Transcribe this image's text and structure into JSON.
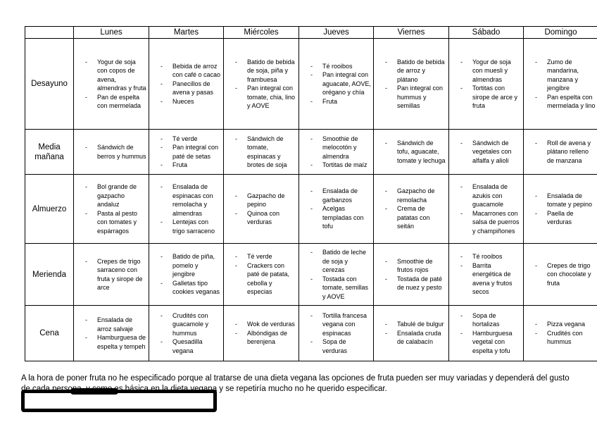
{
  "bullet": "-",
  "table": {
    "header": [
      "",
      "Lunes",
      "Martes",
      "Miércoles",
      "Jueves",
      "Viernes",
      "Sábado",
      "Domingo"
    ],
    "rows": [
      {
        "label": "Desayuno",
        "cells": [
          [
            "Yogur de soja con copos de avena, almendras y fruta",
            "Pan de espelta con mermelada"
          ],
          [
            "Bebida de arroz con café o cacao",
            "Panecillos de avena y pasas",
            "Nueces"
          ],
          [
            "Batido de bebida de soja, piña y frambuesa",
            "Pan integral con tomate, chia, lino y AOVE"
          ],
          [
            "Té rooibos",
            "Pan integral con aguacate, AOVE, orégano y chía",
            "Fruta"
          ],
          [
            "Batido de bebida de arroz y plátano",
            "Pan integral con hummus y semillas"
          ],
          [
            "Yogur de soja con muesli y almendras",
            "Tortitas con sirope de arce y fruta"
          ],
          [
            "Zumo de mandarina, manzana y jengibre",
            "Pan espelta con mermelada y lino"
          ]
        ]
      },
      {
        "label": "Media mañana",
        "cells": [
          [
            "Sándwich de berros y hummus"
          ],
          [
            "Té verde",
            "Pan integral con paté de setas",
            "Fruta"
          ],
          [
            "Sándwich de tomate, espinacas y brotes de soja"
          ],
          [
            "Smoothie de melocotón y almendra",
            "Tortitas de maíz"
          ],
          [
            "Sándwich de tofu, aguacate, tomate y lechuga"
          ],
          [
            "Sándwich de vegetales con alfalfa y alioli"
          ],
          [
            "Roll de avena y plátano relleno de manzana"
          ]
        ]
      },
      {
        "label": "Almuerzo",
        "cells": [
          [
            "Bol grande de gazpacho andaluz",
            "Pasta al pesto con tomates y espárragos"
          ],
          [
            "Ensalada de espinacas con remolacha y almendras",
            "Lentejas con trigo sarraceno"
          ],
          [
            "Gazpacho de pepino",
            "Quinoa con verduras"
          ],
          [
            "Ensalada de garbanzos",
            "Acelgas templadas con tofu"
          ],
          [
            "Gazpacho de remolacha",
            "Crema de patatas con seitán"
          ],
          [
            "Ensalada de azukis con guacamole",
            "Macarrones con salsa de puerros y champiñones"
          ],
          [
            "Ensalada de tomate y pepino",
            "Paella de verduras"
          ]
        ]
      },
      {
        "label": "Merienda",
        "cells": [
          [
            "Crepes de trigo sarraceno con fruta y sirope de arce"
          ],
          [
            "Batido de piña, pomelo y jengibre",
            "Galletas tipo cookies veganas"
          ],
          [
            "Té verde",
            "Crackers con paté de patata, cebolla y especias"
          ],
          [
            "Batido de leche de soja y cerezas",
            "Tostada con tomate, semillas y AOVE"
          ],
          [
            "Smoothie de frutos rojos",
            "Tostada de paté de nuez y pesto"
          ],
          [
            "Té rooibos",
            "Barrita energética de avena y frutos secos"
          ],
          [
            "Crepes de trigo con chocolate y fruta"
          ]
        ]
      },
      {
        "label": "Cena",
        "cells": [
          [
            "Ensalada de arroz salvaje",
            "Hamburguesa de espelta y tempeh"
          ],
          [
            "Crudités con guacamole y hummus",
            "Quesadilla vegana"
          ],
          [
            "Wok de verduras",
            "Albóndigas de berenjena"
          ],
          [
            "Tortilla francesa vegana con espinacas",
            "Sopa de verduras"
          ],
          [
            "Tabulé de bulgur",
            "Ensalada cruda de calabacín"
          ],
          [
            "Sopa de hortalizas",
            "Hamburguesa vegetal con espelta y tofu"
          ],
          [
            "Pizza vegana",
            "Crudités con hummus"
          ]
        ]
      }
    ]
  },
  "footnote": "A la hora de poner fruta no he especificado porque al tratarse de una dieta vegana las opciones de fruta pueden ser muy variadas y dependerá del gusto de cada persona, y como es básica en la dieta vegana y se repetiría mucho no he querido especificar."
}
